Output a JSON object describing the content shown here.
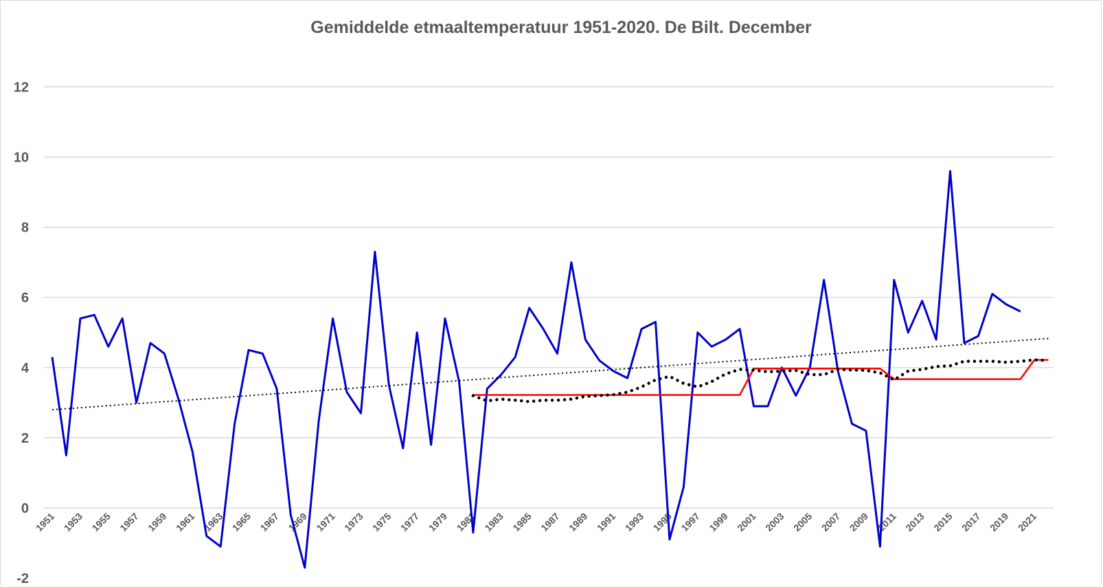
{
  "chart_data": {
    "type": "line",
    "title": "Gemiddelde etmaaltemperatuur 1951-2020. De Bilt. December",
    "xlabel": "",
    "ylabel": "",
    "xlim": [
      1951,
      2022
    ],
    "ylim": [
      -2,
      12
    ],
    "y_ticks": [
      -2,
      0,
      2,
      4,
      6,
      8,
      10,
      12
    ],
    "x_ticks": [
      1951,
      1953,
      1955,
      1957,
      1959,
      1961,
      1963,
      1965,
      1967,
      1969,
      1971,
      1973,
      1975,
      1977,
      1979,
      1981,
      1983,
      1985,
      1987,
      1989,
      1991,
      1993,
      1995,
      1997,
      1999,
      2001,
      2003,
      2005,
      2007,
      2009,
      2011,
      2013,
      2015,
      2017,
      2019,
      2021
    ],
    "grid": "horizontal",
    "legend": "none",
    "series": [
      {
        "style": "solid",
        "color": "#0000cc",
        "x": [
          1951,
          1952,
          1953,
          1954,
          1955,
          1956,
          1957,
          1958,
          1959,
          1960,
          1961,
          1962,
          1963,
          1964,
          1965,
          1966,
          1967,
          1968,
          1969,
          1970,
          1971,
          1972,
          1973,
          1974,
          1975,
          1976,
          1977,
          1978,
          1979,
          1980,
          1981,
          1982,
          1983,
          1984,
          1985,
          1986,
          1987,
          1988,
          1989,
          1990,
          1991,
          1992,
          1993,
          1994,
          1995,
          1996,
          1997,
          1998,
          1999,
          2000,
          2001,
          2002,
          2003,
          2004,
          2005,
          2006,
          2007,
          2008,
          2009,
          2010,
          2011,
          2012,
          2013,
          2014,
          2015,
          2016,
          2017,
          2018,
          2019,
          2020
        ],
        "y": [
          4.3,
          1.5,
          5.4,
          5.5,
          4.6,
          5.4,
          3.0,
          4.7,
          4.4,
          3.1,
          1.6,
          -0.8,
          -1.1,
          2.4,
          4.5,
          4.4,
          3.4,
          -0.2,
          -1.7,
          2.5,
          5.4,
          3.3,
          2.7,
          7.3,
          3.5,
          1.7,
          5.0,
          1.8,
          5.4,
          3.6,
          -0.7,
          3.4,
          3.8,
          4.3,
          5.7,
          5.1,
          4.4,
          7.0,
          4.8,
          4.2,
          3.9,
          3.7,
          5.1,
          5.3,
          -0.9,
          0.6,
          5.0,
          4.6,
          4.8,
          5.1,
          2.9,
          2.9,
          4.0,
          3.2,
          4.0,
          6.5,
          3.9,
          2.4,
          2.2,
          -1.1,
          6.5,
          5.0,
          5.9,
          4.8,
          9.6,
          4.7,
          4.9,
          6.1,
          5.8,
          5.6
        ]
      },
      {
        "style": "solid",
        "color": "#ff0000",
        "x": [
          1981,
          2000,
          2001,
          2010,
          2011,
          2020,
          2021,
          2022
        ],
        "y": [
          3.22,
          3.22,
          3.97,
          3.97,
          3.67,
          3.67,
          4.22,
          4.22
        ]
      },
      {
        "style": "dotted",
        "color": "#000000",
        "x": [
          1981,
          1982,
          1983,
          1984,
          1985,
          1986,
          1987,
          1988,
          1989,
          1990,
          1991,
          1992,
          1993,
          1994,
          1995,
          1996,
          1997,
          1998,
          1999,
          2000,
          2001,
          2002,
          2003,
          2004,
          2005,
          2006,
          2007,
          2008,
          2009,
          2010,
          2011,
          2012,
          2013,
          2014,
          2015,
          2016,
          2017,
          2018,
          2019,
          2020,
          2021,
          2022
        ],
        "y": [
          3.2,
          3.05,
          3.1,
          3.07,
          3.03,
          3.07,
          3.07,
          3.1,
          3.18,
          3.2,
          3.23,
          3.3,
          3.45,
          3.65,
          3.75,
          3.55,
          3.45,
          3.6,
          3.82,
          3.95,
          3.93,
          3.88,
          3.9,
          3.92,
          3.8,
          3.8,
          3.95,
          3.93,
          3.92,
          3.85,
          3.65,
          3.9,
          3.95,
          4.03,
          4.05,
          4.18,
          4.18,
          4.18,
          4.15,
          4.18,
          4.22,
          4.2
        ]
      },
      {
        "style": "dotted-trend",
        "color": "#000000",
        "x": [
          1951,
          2022
        ],
        "y": [
          2.8,
          4.83
        ]
      }
    ]
  }
}
